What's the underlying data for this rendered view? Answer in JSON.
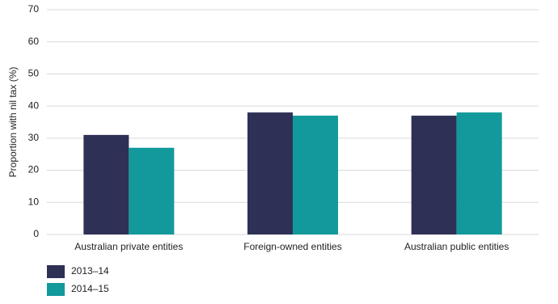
{
  "chart_data": {
    "type": "bar",
    "y_label": "Proportion with nil tax (%)",
    "categories": [
      "Australian private entities",
      "Foreign-owned entities",
      "Australian public entities"
    ],
    "series": [
      {
        "name": "2013–14",
        "color": "#2e3155",
        "values": [
          31,
          38,
          37
        ]
      },
      {
        "name": "2014–15",
        "color": "#12999b",
        "values": [
          27,
          37,
          38
        ]
      }
    ],
    "ylim": [
      0,
      70
    ],
    "yticks": [
      0,
      10,
      20,
      30,
      40,
      50,
      60,
      70
    ],
    "grid": true,
    "legend": "bottom-left"
  }
}
